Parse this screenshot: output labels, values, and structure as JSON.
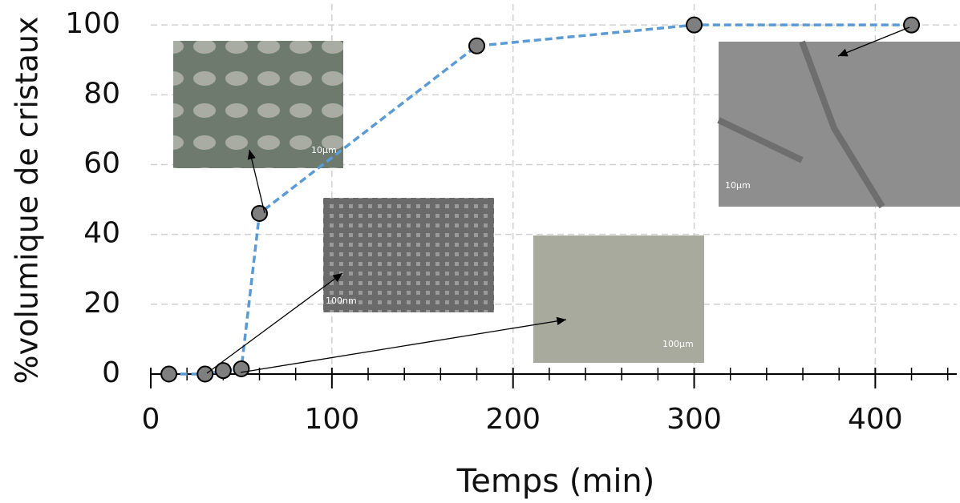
{
  "chart_data": {
    "type": "line",
    "x_label": "Temps (min)",
    "y_label": "%volumique de cristaux",
    "x": [
      10,
      30,
      40,
      50,
      60,
      180,
      300,
      420
    ],
    "series": [
      {
        "color": "#5b9bd5",
        "marker_color": "#7f7f7f",
        "values": [
          0,
          0,
          1,
          1.5,
          46,
          94,
          100,
          100
        ]
      }
    ],
    "xlim": [
      0,
      445
    ],
    "ylim": [
      0,
      106
    ],
    "xticks": [
      0,
      100,
      200,
      300,
      400
    ],
    "xminorticks": [
      20,
      40,
      60,
      80,
      120,
      140,
      160,
      180,
      220,
      240,
      260,
      280,
      320,
      340,
      360,
      380,
      420,
      440
    ],
    "yticks": [
      0,
      20,
      40,
      60,
      80,
      100
    ],
    "grid": true,
    "insets": [
      {
        "scale_label": "10µm"
      },
      {
        "scale_label": "100nm"
      },
      {
        "scale_label": "100µm"
      },
      {
        "scale_label": "10µm"
      }
    ]
  }
}
